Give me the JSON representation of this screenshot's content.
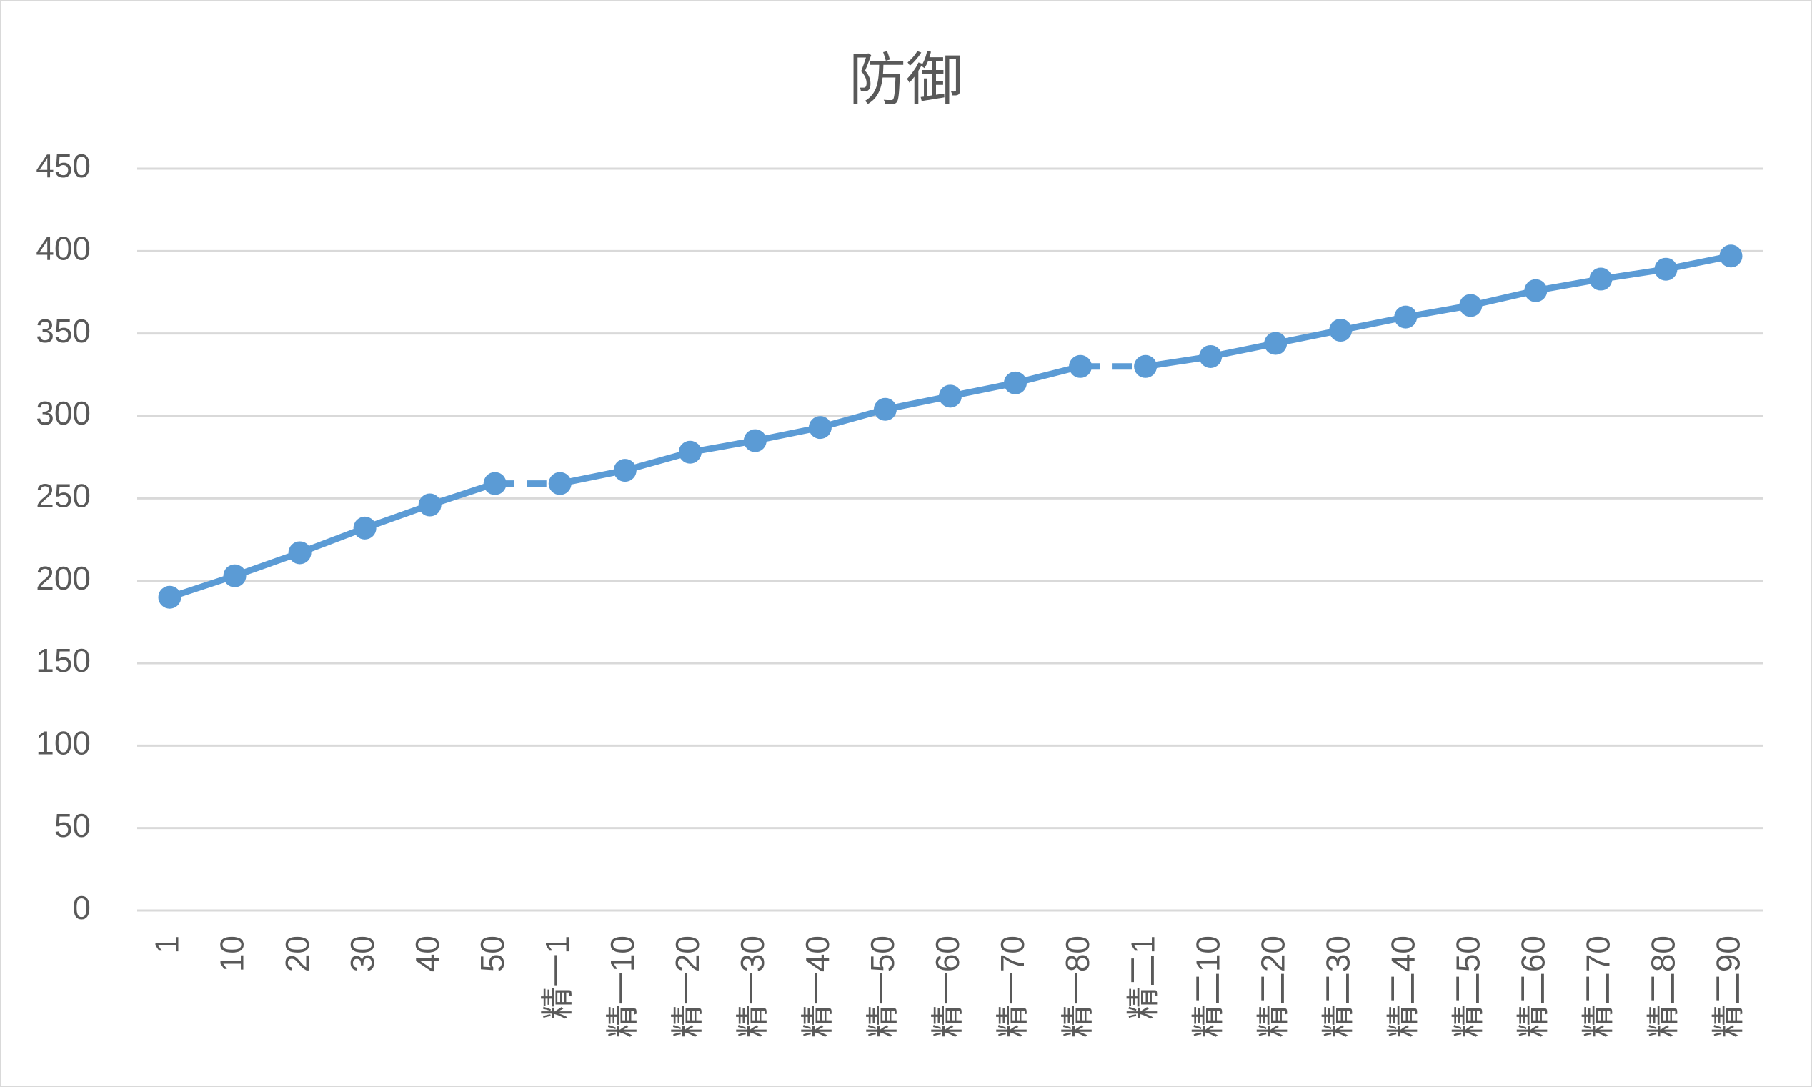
{
  "chart_data": {
    "type": "line",
    "title": "防御",
    "categories": [
      "1",
      "10",
      "20",
      "30",
      "40",
      "50",
      "精一1",
      "精一10",
      "精一20",
      "精一30",
      "精一40",
      "精一50",
      "精一60",
      "精一70",
      "精一80",
      "精二1",
      "精二10",
      "精二20",
      "精二30",
      "精二40",
      "精二50",
      "精二60",
      "精二70",
      "精二80",
      "精二90"
    ],
    "series": [
      {
        "color": "#5b9bd5",
        "values": [
          190,
          203,
          217,
          232,
          246,
          259,
          259,
          267,
          278,
          285,
          293,
          304,
          312,
          320,
          330,
          330,
          336,
          344,
          352,
          360,
          367,
          376,
          383,
          389,
          397
        ]
      }
    ],
    "dashed_segments": [
      5,
      14
    ],
    "ylim": [
      0,
      450
    ],
    "yticks": [
      0,
      50,
      100,
      150,
      200,
      250,
      300,
      350,
      400,
      450
    ],
    "grid": true
  }
}
